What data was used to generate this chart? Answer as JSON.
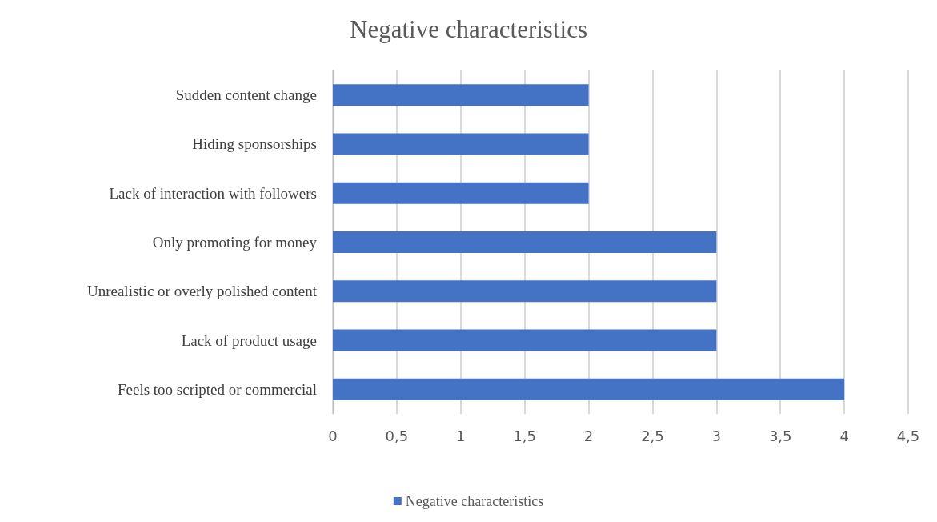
{
  "chart_data": {
    "type": "bar",
    "orientation": "horizontal",
    "title": "Negative characteristics",
    "categories": [
      "Sudden content change",
      "Hiding sponsorships",
      "Lack of interaction with followers",
      "Only promoting for money",
      "Unrealistic or overly polished content",
      "Lack of product usage",
      "Feels too scripted or commercial"
    ],
    "series": [
      {
        "name": "Negative characteristics",
        "color": "#4472c4",
        "values": [
          2,
          2,
          2,
          3,
          3,
          3,
          4
        ]
      }
    ],
    "xlim": [
      0,
      4.5
    ],
    "xticks": [
      0,
      {
        "value": 0.5,
        "label": "0,5"
      },
      1,
      {
        "value": 1.5,
        "label": "1,5"
      },
      2,
      {
        "value": 2.5,
        "label": "2,5"
      },
      3,
      {
        "value": 3.5,
        "label": "3,5"
      },
      4,
      {
        "value": 4.5,
        "label": "4,5"
      }
    ],
    "grid": "x",
    "legend": "bottom"
  }
}
